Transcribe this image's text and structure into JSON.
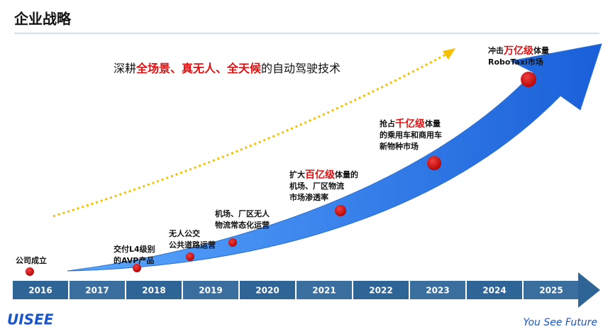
{
  "header": {
    "title": "企业战略"
  },
  "slogan": [
    {
      "text": "深耕"
    },
    {
      "text": "全场景、真无人、全天候",
      "emphasis": true
    },
    {
      "text": "的自动驾驶技术"
    }
  ],
  "milestones": [
    {
      "lines": [
        [
          {
            "text": "公司成立"
          }
        ]
      ]
    },
    {
      "lines": [
        [
          {
            "text": "交付L4级别"
          }
        ],
        [
          {
            "text": "的AVP产品"
          }
        ]
      ]
    },
    {
      "lines": [
        [
          {
            "text": "无人公交"
          }
        ],
        [
          {
            "text": "公共道路运营"
          }
        ]
      ]
    },
    {
      "lines": [
        [
          {
            "text": "机场、厂区无人"
          }
        ],
        [
          {
            "text": "物流常态化运营"
          }
        ]
      ]
    },
    {
      "lines": [
        [
          {
            "text": "扩大"
          },
          {
            "text": "百亿级",
            "emphasis": true
          },
          {
            "text": "体量的"
          }
        ],
        [
          {
            "text": "机场、厂区物流"
          }
        ],
        [
          {
            "text": "市场渗透率"
          }
        ]
      ]
    },
    {
      "lines": [
        [
          {
            "text": "抢占"
          },
          {
            "text": "千亿级",
            "emphasis": true
          },
          {
            "text": "体量"
          }
        ],
        [
          {
            "text": "的乘用车和商用车"
          }
        ],
        [
          {
            "text": "新物种市场"
          }
        ]
      ]
    },
    {
      "lines": [
        [
          {
            "text": "冲击"
          },
          {
            "text": "万亿级",
            "emphasis": true
          },
          {
            "text": "体量"
          }
        ],
        [
          {
            "text": "RoboTaxi市场"
          }
        ]
      ]
    }
  ],
  "years": [
    "2016",
    "2017",
    "2018",
    "2019",
    "2020",
    "2021",
    "2022",
    "2023",
    "2024",
    "2025"
  ],
  "footer": {
    "logo": "UISEE",
    "tagline": "You See Future"
  }
}
